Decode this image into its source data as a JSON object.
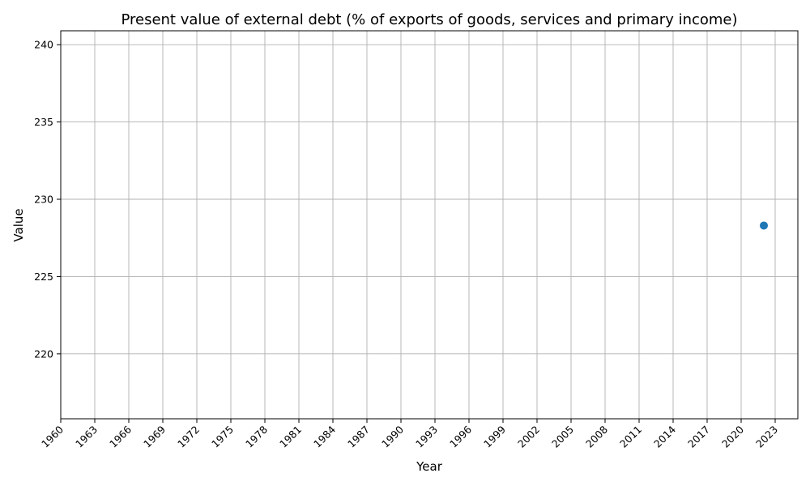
{
  "chart_data": {
    "type": "scatter",
    "title": "Present value of external debt (% of exports of goods, services and primary income)",
    "xlabel": "Year",
    "ylabel": "Value",
    "xlim": [
      1960,
      2025
    ],
    "ylim": [
      215.8,
      240.9
    ],
    "x_ticks": [
      1960,
      1963,
      1966,
      1969,
      1972,
      1975,
      1978,
      1981,
      1984,
      1987,
      1990,
      1993,
      1996,
      1999,
      2002,
      2005,
      2008,
      2011,
      2014,
      2017,
      2020,
      2023
    ],
    "y_ticks": [
      220,
      225,
      230,
      235,
      240
    ],
    "grid": true,
    "legend": "none",
    "series": [
      {
        "color": "#1f77b4",
        "points": [
          {
            "x": 2022,
            "y": 228.3
          }
        ]
      }
    ]
  }
}
